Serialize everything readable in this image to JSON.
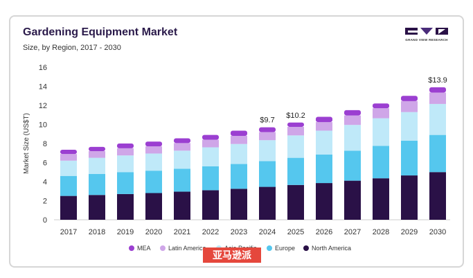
{
  "chart_data": {
    "type": "bar",
    "stacked": true,
    "title": "Gardening Equipment Market",
    "subtitle": "Size, by Region, 2017 - 2030",
    "ylabel": "Market Size (US$T)",
    "xlabel": "",
    "ylim": [
      0,
      16
    ],
    "yticks": [
      0,
      2,
      4,
      6,
      8,
      10,
      12,
      14,
      16
    ],
    "categories": [
      "2017",
      "2018",
      "2019",
      "2020",
      "2021",
      "2022",
      "2023",
      "2024",
      "2025",
      "2026",
      "2027",
      "2028",
      "2029",
      "2030"
    ],
    "series": [
      {
        "name": "North America",
        "color": "#2a1147",
        "values": [
          2.5,
          2.6,
          2.7,
          2.8,
          2.95,
          3.1,
          3.25,
          3.45,
          3.65,
          3.85,
          4.1,
          4.35,
          4.65,
          5.0
        ]
      },
      {
        "name": "Europe",
        "color": "#55c7ee",
        "values": [
          2.1,
          2.2,
          2.3,
          2.35,
          2.4,
          2.5,
          2.6,
          2.7,
          2.85,
          3.0,
          3.15,
          3.4,
          3.65,
          3.9
        ]
      },
      {
        "name": "Asia Pacific",
        "color": "#bfe9f9",
        "values": [
          1.6,
          1.7,
          1.75,
          1.8,
          1.9,
          2.0,
          2.1,
          2.2,
          2.35,
          2.5,
          2.7,
          2.9,
          3.0,
          3.25
        ]
      },
      {
        "name": "Latin America",
        "color": "#cfa6e8",
        "values": [
          0.7,
          0.7,
          0.75,
          0.75,
          0.8,
          0.8,
          0.85,
          0.85,
          0.9,
          0.9,
          1.0,
          1.05,
          1.15,
          1.2
        ]
      },
      {
        "name": "MEA",
        "color": "#9b3fd1",
        "values": [
          0.45,
          0.45,
          0.5,
          0.5,
          0.5,
          0.5,
          0.55,
          0.5,
          0.45,
          0.55,
          0.55,
          0.5,
          0.55,
          0.55
        ]
      }
    ],
    "annotations": [
      {
        "category": "2024",
        "label": "$9.7"
      },
      {
        "category": "2025",
        "label": "$10.2"
      },
      {
        "category": "2030",
        "label": "$13.9"
      }
    ],
    "legend": {
      "position": "bottom",
      "entries": [
        "MEA",
        "Latin America",
        "Asia Pacific",
        "Europe",
        "North America"
      ]
    },
    "grid": false
  },
  "branding": {
    "logo_text": "GRAND VIEW RESEARCH",
    "watermark": "亚马逊派"
  }
}
